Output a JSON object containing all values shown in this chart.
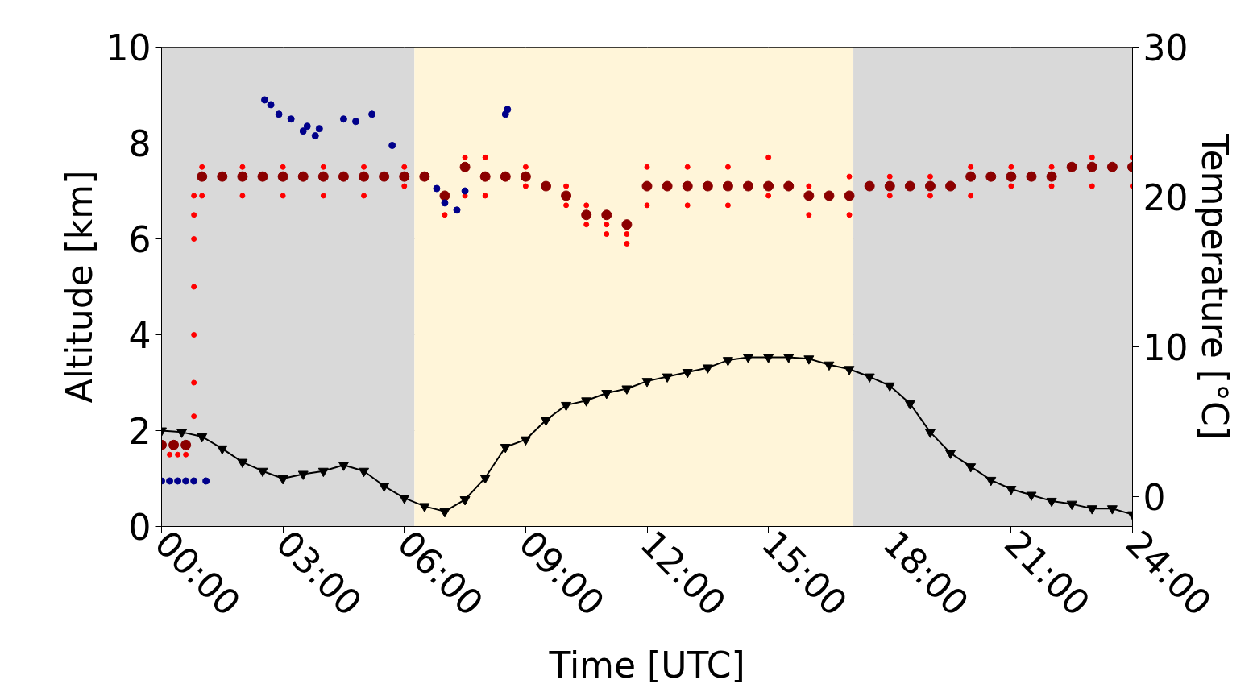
{
  "chart_data": {
    "type": "scatter",
    "xlabel": "Time [UTC]",
    "ylabel": "Altitude [km]",
    "y2label": "Temperature [°C]",
    "xlim": [
      0,
      24
    ],
    "ylim": [
      0,
      10
    ],
    "y2lim": [
      -2,
      30
    ],
    "xticks": [
      {
        "value": 0,
        "label": "00:00"
      },
      {
        "value": 3,
        "label": "03:00"
      },
      {
        "value": 6,
        "label": "06:00"
      },
      {
        "value": 9,
        "label": "09:00"
      },
      {
        "value": 12,
        "label": "12:00"
      },
      {
        "value": 15,
        "label": "15:00"
      },
      {
        "value": 18,
        "label": "18:00"
      },
      {
        "value": 21,
        "label": "21:00"
      },
      {
        "value": 24,
        "label": "24:00"
      }
    ],
    "yticks": [
      0,
      2,
      4,
      6,
      8,
      10
    ],
    "y2ticks": [
      0,
      10,
      20,
      30
    ],
    "grid": true,
    "bands": [
      {
        "axis": "x",
        "from": 0,
        "to": 6.25,
        "color": "#d9d9d9"
      },
      {
        "axis": "x",
        "from": 6.25,
        "to": 17.1,
        "color": "#fff5d9"
      },
      {
        "axis": "x",
        "from": 17.1,
        "to": 24,
        "color": "#d9d9d9"
      }
    ],
    "series": [
      {
        "marker": "circle",
        "color": "#ff0000",
        "x": [
          0.2,
          0.4,
          0.6,
          0.8,
          0.8,
          0.8,
          0.8,
          0.8,
          0.8,
          0.8,
          1.0,
          2.0,
          3.0,
          4.0,
          5.0,
          6.0,
          1.0,
          2.0,
          3.0,
          4.0,
          5.0,
          6.0,
          7.0,
          7.5,
          8.0,
          9.0,
          7.5,
          8.0,
          9.0,
          10.0,
          10.5,
          11.0,
          11.5,
          10.0,
          10.5,
          11.0,
          11.5,
          12.0,
          13.0,
          14.0,
          15.0,
          12.0,
          13.0,
          14.0,
          15.0,
          16.0,
          17.0,
          16.0,
          17.0,
          18.0,
          19.0,
          20.0,
          21.0,
          22.0,
          23.0,
          24.0,
          18.0,
          19.0,
          20.0,
          21.0,
          22.0,
          23.0,
          24.0
        ],
        "values": [
          1.5,
          1.5,
          1.5,
          2.3,
          3.0,
          4.0,
          5.0,
          6.0,
          6.5,
          6.9,
          7.5,
          7.5,
          7.5,
          7.5,
          7.5,
          7.5,
          6.9,
          6.9,
          6.9,
          6.9,
          6.9,
          7.1,
          6.5,
          7.7,
          7.7,
          7.5,
          6.9,
          6.9,
          7.1,
          7.1,
          6.7,
          6.3,
          6.1,
          6.7,
          6.3,
          6.1,
          5.9,
          7.5,
          7.5,
          7.5,
          7.7,
          6.7,
          6.7,
          6.7,
          6.9,
          6.5,
          6.5,
          7.1,
          7.3,
          7.3,
          7.3,
          7.5,
          7.5,
          7.5,
          7.7,
          7.7,
          6.9,
          6.9,
          6.9,
          7.1,
          7.1,
          7.1,
          7.1
        ]
      },
      {
        "marker": "circle",
        "color": "#8b0000",
        "x": [
          0.0,
          0.3,
          0.6,
          1.0,
          1.5,
          2.0,
          2.5,
          3.0,
          3.5,
          4.0,
          4.5,
          5.0,
          5.5,
          6.0,
          6.5,
          7.0,
          7.5,
          8.0,
          8.5,
          9.0,
          9.5,
          10.0,
          10.5,
          11.0,
          11.5,
          12.0,
          12.5,
          13.0,
          13.5,
          14.0,
          14.5,
          15.0,
          15.5,
          16.0,
          16.5,
          17.0,
          17.5,
          18.0,
          18.5,
          19.0,
          19.5,
          20.0,
          20.5,
          21.0,
          21.5,
          22.0,
          22.5,
          23.0,
          23.5,
          24.0
        ],
        "values": [
          1.7,
          1.7,
          1.7,
          7.3,
          7.3,
          7.3,
          7.3,
          7.3,
          7.3,
          7.3,
          7.3,
          7.3,
          7.3,
          7.3,
          7.3,
          6.9,
          7.5,
          7.3,
          7.3,
          7.3,
          7.1,
          6.9,
          6.5,
          6.5,
          6.3,
          7.1,
          7.1,
          7.1,
          7.1,
          7.1,
          7.1,
          7.1,
          7.1,
          6.9,
          6.9,
          6.9,
          7.1,
          7.1,
          7.1,
          7.1,
          7.1,
          7.3,
          7.3,
          7.3,
          7.3,
          7.3,
          7.5,
          7.5,
          7.5,
          7.5
        ]
      },
      {
        "marker": "circle",
        "color": "#00008b",
        "x": [
          0.0,
          0.2,
          0.4,
          0.6,
          0.8,
          1.1,
          2.55,
          2.7,
          2.9,
          3.2,
          3.5,
          3.6,
          3.8,
          3.9,
          4.5,
          4.8,
          5.2,
          5.7,
          6.8,
          7.0,
          7.3,
          7.5,
          8.5,
          8.55
        ],
        "values": [
          0.95,
          0.95,
          0.95,
          0.95,
          0.95,
          0.95,
          8.9,
          8.8,
          8.6,
          8.5,
          8.25,
          8.35,
          8.15,
          8.3,
          8.5,
          8.45,
          8.6,
          7.95,
          7.05,
          6.75,
          6.6,
          7.0,
          8.6,
          8.7
        ]
      },
      {
        "type": "line",
        "axis": "y2",
        "marker": "triangle",
        "color": "#000000",
        "x": [
          0.0,
          0.5,
          1.0,
          1.5,
          2.0,
          2.5,
          3.0,
          3.5,
          4.0,
          4.5,
          5.0,
          5.5,
          6.0,
          6.5,
          7.0,
          7.5,
          8.0,
          8.5,
          9.0,
          9.5,
          10.0,
          10.5,
          11.0,
          11.5,
          12.0,
          12.5,
          13.0,
          13.5,
          14.0,
          14.5,
          15.0,
          15.5,
          16.0,
          16.5,
          17.0,
          17.5,
          18.0,
          18.5,
          19.0,
          19.5,
          20.0,
          20.5,
          21.0,
          21.5,
          22.0,
          22.5,
          23.0,
          23.5,
          24.0
        ],
        "values": [
          4.4,
          4.3,
          4.0,
          3.2,
          2.3,
          1.7,
          1.2,
          1.5,
          1.7,
          2.1,
          1.7,
          0.7,
          -0.1,
          -0.65,
          -1.0,
          -0.2,
          1.25,
          3.3,
          3.8,
          5.1,
          6.1,
          6.4,
          6.9,
          7.2,
          7.7,
          8.0,
          8.3,
          8.6,
          9.1,
          9.3,
          9.3,
          9.3,
          9.2,
          8.8,
          8.5,
          8.0,
          7.4,
          6.2,
          4.3,
          2.9,
          2.0,
          1.1,
          0.5,
          0.1,
          -0.3,
          -0.5,
          -0.8,
          -0.8,
          -1.2
        ]
      }
    ]
  }
}
